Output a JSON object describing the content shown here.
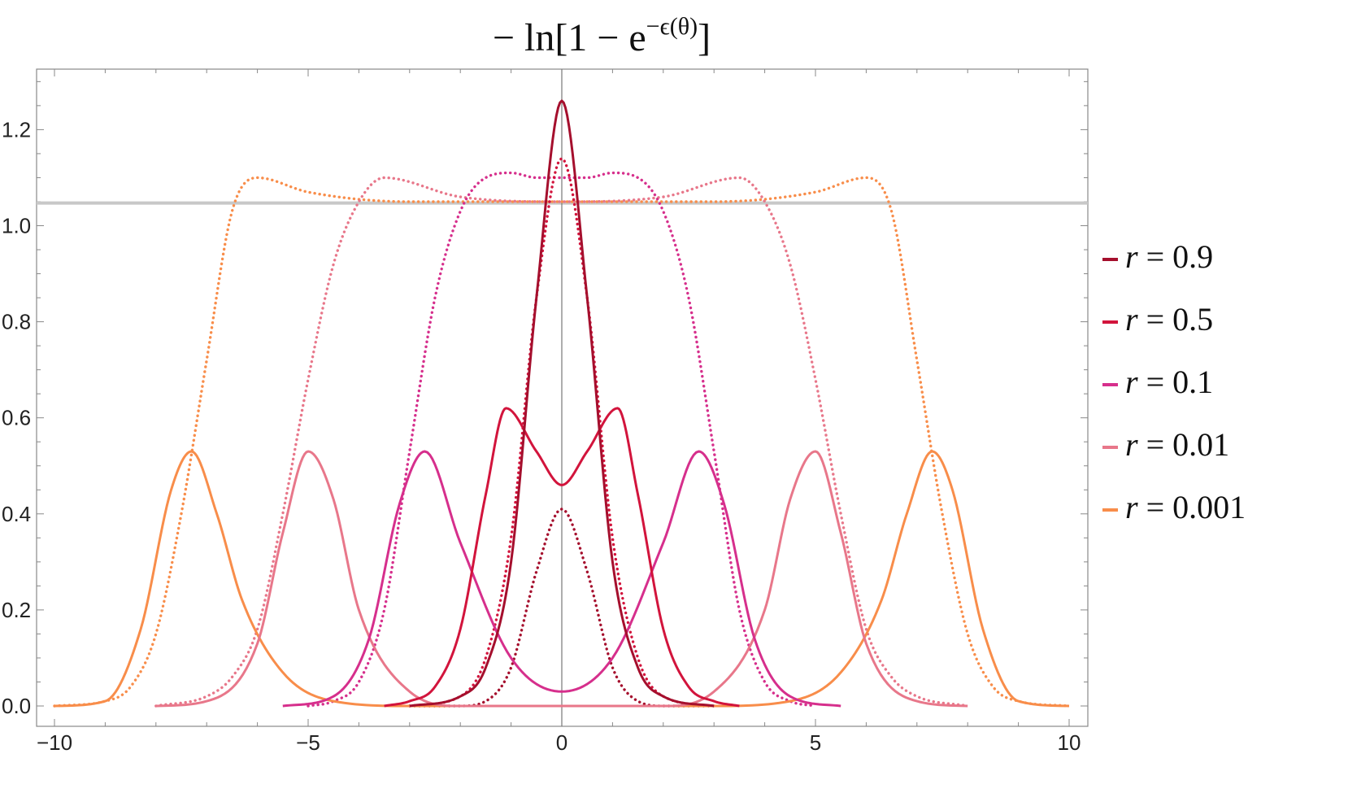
{
  "chart_data": {
    "type": "line",
    "title": "−ln[1 − e^(−ϵ(θ))]",
    "title_parts": {
      "prefix": "− ln[1 − e",
      "sup": "−ϵ(θ)",
      "suffix": "]"
    },
    "xlabel": "",
    "ylabel": "",
    "xlim": [
      -10,
      10
    ],
    "ylim": [
      -0.02,
      1.33
    ],
    "xticks": [
      -10,
      -5,
      0,
      5,
      10
    ],
    "xtick_labels": [
      "−10",
      "−5",
      "0",
      "5",
      "10"
    ],
    "yticks": [
      0.0,
      0.2,
      0.4,
      0.6,
      0.8,
      1.0,
      1.2
    ],
    "ytick_labels": [
      "0.0",
      "0.2",
      "0.4",
      "0.6",
      "0.8",
      "1.0",
      "1.2"
    ],
    "grid": false,
    "reference_line": {
      "y": 1.0472,
      "color": "#c8c8c8"
    },
    "legend_position": "right",
    "series": [
      {
        "name": "r = 0.9",
        "label_var": "r",
        "label_value": "0.9",
        "color": "#a50f2d",
        "solid": {
          "x": [
            -3,
            -2,
            -1.5,
            -1,
            -0.5,
            0,
            0.5,
            1,
            1.5,
            2,
            3
          ],
          "y": [
            0.0,
            0.02,
            0.08,
            0.3,
            0.85,
            1.26,
            0.85,
            0.3,
            0.08,
            0.02,
            0.0
          ]
        },
        "dotted": {
          "x": [
            -3,
            -2,
            -1.5,
            -1,
            -0.5,
            0,
            0.5,
            1,
            1.5,
            2,
            3
          ],
          "y": [
            0.0,
            0.0,
            0.01,
            0.08,
            0.28,
            0.41,
            0.28,
            0.08,
            0.01,
            0.0,
            0.0
          ]
        }
      },
      {
        "name": "r = 0.5",
        "label_var": "r",
        "label_value": "0.5",
        "color": "#d2143c",
        "solid": {
          "x": [
            -3.5,
            -3,
            -2.5,
            -2,
            -1.5,
            -1.1,
            -0.5,
            0,
            0.5,
            1.1,
            1.5,
            2,
            2.5,
            3,
            3.5
          ],
          "y": [
            0.0,
            0.01,
            0.04,
            0.16,
            0.44,
            0.62,
            0.53,
            0.46,
            0.53,
            0.62,
            0.44,
            0.16,
            0.04,
            0.01,
            0.0
          ]
        },
        "dotted": {
          "x": [
            -3,
            -2,
            -1.5,
            -1,
            -0.5,
            0,
            0.5,
            1,
            1.5,
            2,
            3
          ],
          "y": [
            0.0,
            0.02,
            0.1,
            0.35,
            0.85,
            1.14,
            0.85,
            0.35,
            0.1,
            0.02,
            0.0
          ]
        }
      },
      {
        "name": "r = 0.1",
        "label_var": "r",
        "label_value": "0.1",
        "color": "#d62f8c",
        "solid": {
          "x": [
            -5.5,
            -4.5,
            -3.8,
            -3.2,
            -2.7,
            -2,
            -1,
            0,
            1,
            2,
            2.7,
            3.2,
            3.8,
            4.5,
            5.5
          ],
          "y": [
            0.0,
            0.02,
            0.14,
            0.42,
            0.53,
            0.34,
            0.1,
            0.03,
            0.1,
            0.34,
            0.53,
            0.42,
            0.14,
            0.02,
            0.0
          ]
        },
        "dotted": {
          "x": [
            -5,
            -4.5,
            -4,
            -3.5,
            -3,
            -2.5,
            -2,
            -1.5,
            -1,
            -0.5,
            0,
            0.5,
            1,
            1.5,
            2,
            2.5,
            3,
            3.5,
            4,
            4.5,
            5
          ],
          "y": [
            0.0,
            0.01,
            0.05,
            0.2,
            0.53,
            0.85,
            1.03,
            1.1,
            1.11,
            1.1,
            1.1,
            1.1,
            1.11,
            1.1,
            1.03,
            0.85,
            0.53,
            0.2,
            0.05,
            0.01,
            0.0
          ]
        }
      },
      {
        "name": "r = 0.01",
        "label_var": "r",
        "label_value": "0.01",
        "color": "#e8778a",
        "solid": {
          "x": [
            -8,
            -7,
            -6,
            -5.5,
            -5,
            -4.5,
            -4,
            -3,
            -2,
            0,
            2,
            3,
            4,
            4.5,
            5,
            5.5,
            6,
            7,
            8
          ],
          "y": [
            0.0,
            0.01,
            0.13,
            0.36,
            0.53,
            0.43,
            0.2,
            0.03,
            0.0,
            0.0,
            0.0,
            0.03,
            0.2,
            0.43,
            0.53,
            0.36,
            0.13,
            0.01,
            0.0
          ]
        },
        "dotted": {
          "x": [
            -8,
            -7,
            -6.5,
            -6,
            -5.5,
            -5,
            -4.5,
            -4,
            -3.5,
            -2,
            0,
            2,
            3.5,
            4,
            4.5,
            5,
            5.5,
            6,
            6.5,
            7,
            8
          ],
          "y": [
            0.0,
            0.02,
            0.06,
            0.16,
            0.4,
            0.68,
            0.92,
            1.05,
            1.1,
            1.06,
            1.05,
            1.06,
            1.1,
            1.05,
            0.92,
            0.68,
            0.4,
            0.16,
            0.06,
            0.02,
            0.0
          ]
        }
      },
      {
        "name": "r = 0.001",
        "label_var": "r",
        "label_value": "0.001",
        "color": "#f88d4a",
        "solid": {
          "x": [
            -10,
            -9,
            -8.3,
            -7.7,
            -7.3,
            -6.8,
            -6.3,
            -5.5,
            -4.5,
            -3,
            0,
            3,
            4.5,
            5.5,
            6.3,
            6.8,
            7.3,
            7.7,
            8.3,
            9,
            10
          ],
          "y": [
            0.0,
            0.01,
            0.16,
            0.45,
            0.53,
            0.4,
            0.22,
            0.07,
            0.01,
            0.0,
            0.0,
            0.0,
            0.01,
            0.07,
            0.22,
            0.4,
            0.53,
            0.45,
            0.16,
            0.01,
            0.0
          ]
        },
        "dotted": {
          "x": [
            -10,
            -9,
            -8.5,
            -8,
            -7.5,
            -7,
            -6.5,
            -6,
            -5,
            -3,
            0,
            3,
            5,
            6,
            6.5,
            7,
            7.5,
            8,
            8.5,
            9,
            10
          ],
          "y": [
            0.0,
            0.01,
            0.04,
            0.15,
            0.4,
            0.72,
            1.03,
            1.1,
            1.07,
            1.05,
            1.05,
            1.05,
            1.07,
            1.1,
            1.03,
            0.72,
            0.4,
            0.15,
            0.04,
            0.01,
            0.0
          ]
        }
      }
    ]
  }
}
